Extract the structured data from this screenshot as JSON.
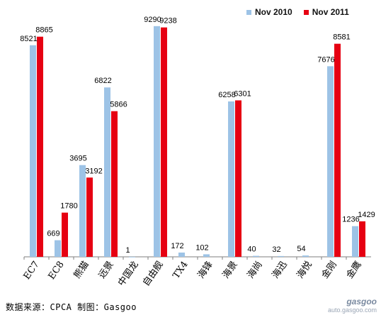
{
  "legend": {
    "series1": "Nov 2010",
    "series2": "Nov 2011"
  },
  "source_text": "数据来源：CPCA 制图：Gasgoo",
  "watermark": {
    "logo": "gasgoo",
    "url": "auto.gasgoo.com"
  },
  "colors": {
    "series1": "#9dc3e6",
    "series2": "#e60012",
    "axis": "#7f7f7f"
  },
  "chart_data": {
    "type": "bar",
    "title": "",
    "xlabel": "",
    "ylabel": "",
    "ylim": [
      0,
      10000
    ],
    "grid": false,
    "legend_position": "top-right",
    "categories": [
      "EC7",
      "EC8",
      "熊猫",
      "远景",
      "中国龙",
      "自由舰",
      "TX4",
      "海锋",
      "海景",
      "海尚",
      "海迅",
      "海悦",
      "金刚",
      "金鹰"
    ],
    "series": [
      {
        "name": "Nov 2010",
        "values": [
          8521,
          669,
          3695,
          6822,
          1,
          9290,
          172,
          102,
          6258,
          40,
          32,
          54,
          7676,
          1236
        ]
      },
      {
        "name": "Nov 2011",
        "values": [
          8865,
          1780,
          3192,
          5866,
          0,
          9238,
          0,
          0,
          6301,
          0,
          0,
          0,
          8581,
          1429
        ]
      }
    ]
  }
}
